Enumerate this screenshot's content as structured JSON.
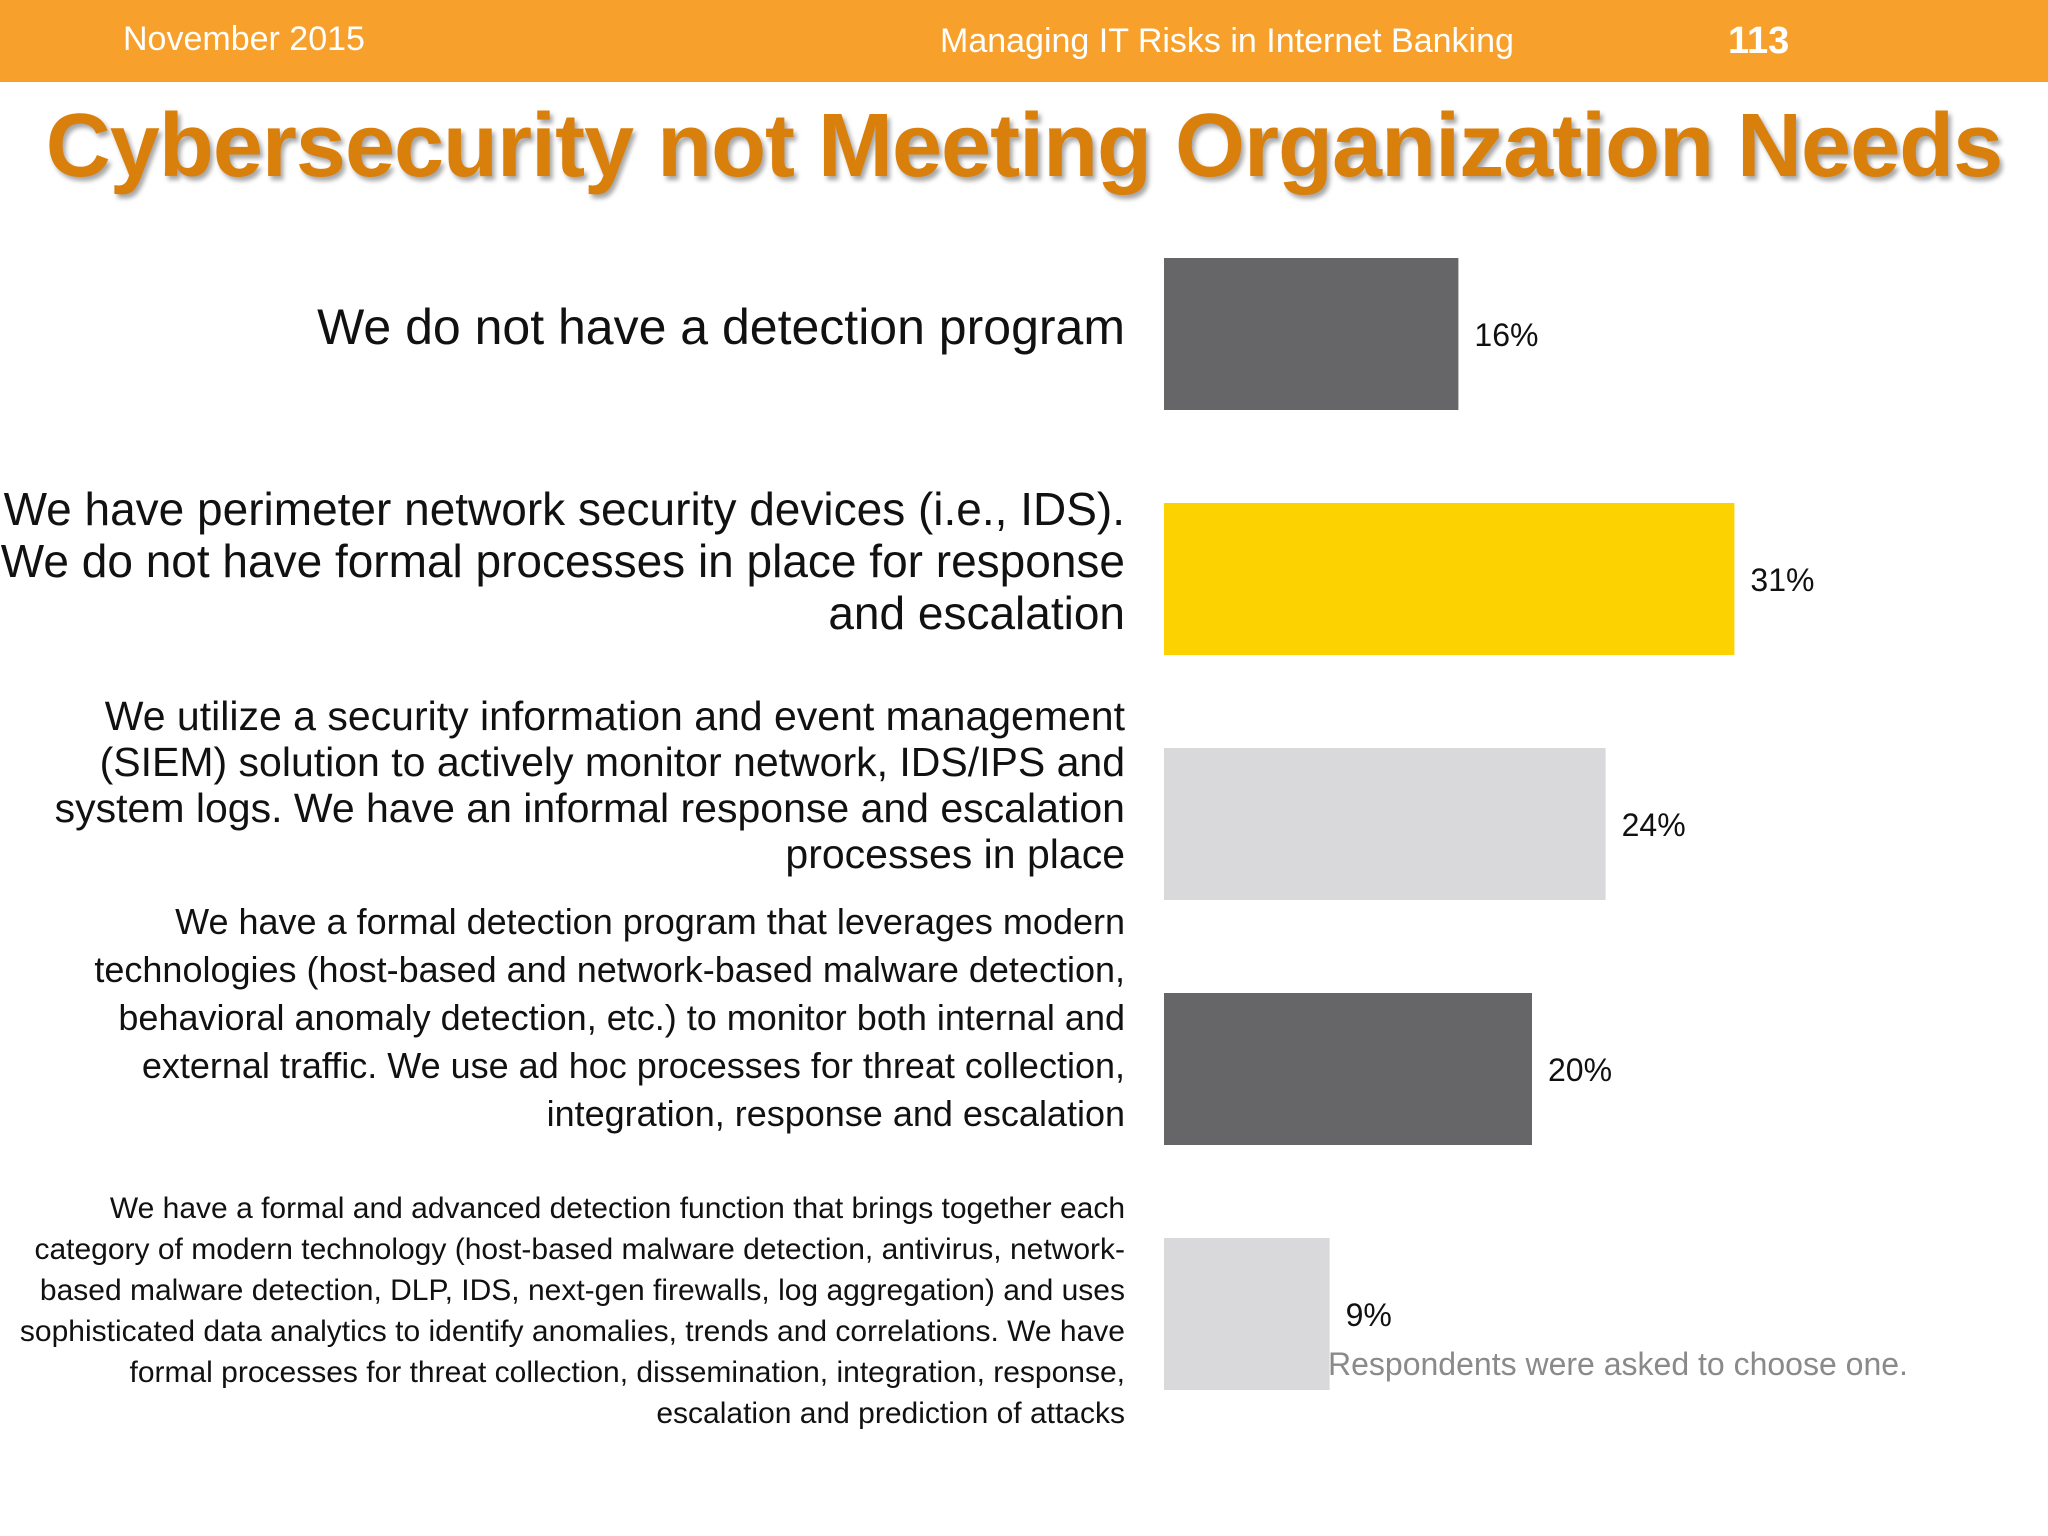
{
  "header": {
    "date": "November 2015",
    "title": "Managing IT Risks in Internet Banking",
    "page_number": "113",
    "background_color": "#f7a12c"
  },
  "slide_title": "Cybersecurity not Meeting Organization Needs",
  "footnote": "Respondents were asked to choose one.",
  "chart_data": {
    "type": "bar",
    "orientation": "horizontal",
    "categories": [
      "We do not have a detection program",
      "We have perimeter network security devices (i.e., IDS). We do not have formal processes in place for response and escalation",
      "We utilize a security information and event management (SIEM) solution to actively monitor network, IDS/IPS and system logs. We have an informal response and escalation processes in place",
      "We have a formal detection program that leverages modern technologies (host-based and network-based malware detection, behavioral anomaly detection, etc.) to monitor both internal and external traffic. We use ad hoc processes for threat collection, integration, response and escalation",
      "We have a formal and advanced detection function that brings together each category of modern technology (host-based malware detection, antivirus, network-based malware detection, DLP, IDS, next-gen firewalls, log aggregation) and uses sophisticated data analytics to identify anomalies, trends and correlations. We have formal processes for threat collection, dissemination, integration, response, escalation and prediction of attacks"
    ],
    "values": [
      16,
      31,
      24,
      20,
      9
    ],
    "value_labels": [
      "16%",
      "31%",
      "24%",
      "20%",
      "9%"
    ],
    "bar_colors": [
      "#666568",
      "#fcd200",
      "#d9d8da",
      "#666568",
      "#d9d8da"
    ],
    "xlim": [
      0,
      100
    ],
    "grid": false,
    "legend": "none"
  }
}
